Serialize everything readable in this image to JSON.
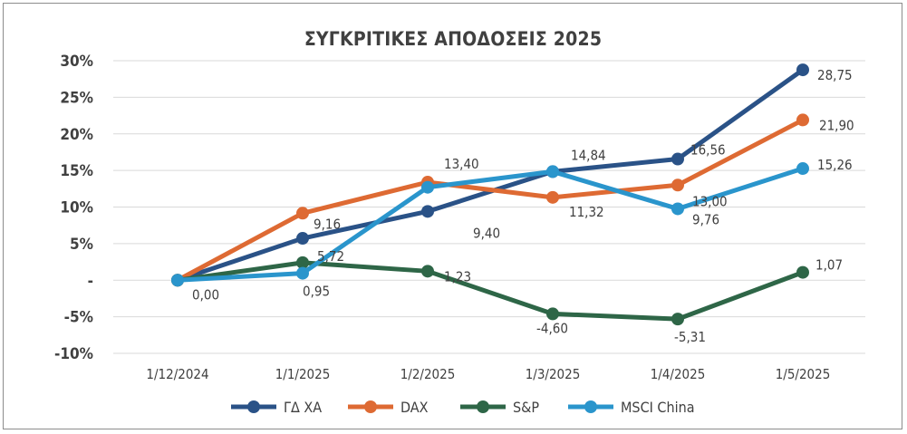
{
  "chart_data": {
    "type": "line",
    "title": "ΣΥΓΚΡΙΤΙΚΕΣ ΑΠΟΔΟΣΕΙΣ 2025",
    "categories": [
      "1/12/2024",
      "1/1/2025",
      "1/2/2025",
      "1/3/2025",
      "1/4/2025",
      "1/5/2025"
    ],
    "ylim": [
      -10,
      30
    ],
    "yticks": [
      {
        "value": 30,
        "label": "30%"
      },
      {
        "value": 25,
        "label": "25%"
      },
      {
        "value": 20,
        "label": "20%"
      },
      {
        "value": 15,
        "label": "15%"
      },
      {
        "value": 10,
        "label": "10%"
      },
      {
        "value": 5,
        "label": "5%"
      },
      {
        "value": 0,
        "label": "-"
      },
      {
        "value": -5,
        "label": "-5%"
      },
      {
        "value": -10,
        "label": "-10%"
      }
    ],
    "grid": true,
    "legend": "bottom",
    "series": [
      {
        "name": "ΓΔ ΧΑ",
        "color": "#2a5287",
        "values": [
          0.0,
          5.72,
          9.4,
          14.84,
          16.56,
          28.75
        ],
        "labels": [
          "0,00",
          "5,72",
          "9,40",
          "14,84",
          "16,56",
          "28,75"
        ]
      },
      {
        "name": "DAX",
        "color": "#de6a33",
        "values": [
          0.0,
          9.16,
          13.4,
          11.32,
          13.0,
          21.9
        ],
        "labels": [
          "",
          "9,16",
          "13,40",
          "11,32",
          "13,00",
          "21,90"
        ]
      },
      {
        "name": "S&P",
        "color": "#2e6647",
        "values": [
          0.0,
          2.4,
          1.23,
          -4.6,
          -5.31,
          1.07
        ],
        "labels": [
          "",
          "",
          "1,23",
          "-4,60",
          "-5,31",
          "1,07"
        ]
      },
      {
        "name": "MSCI China",
        "color": "#2a95cc",
        "values": [
          0.0,
          0.95,
          12.7,
          14.84,
          9.76,
          15.26
        ],
        "labels": [
          "",
          "0,95",
          "",
          "",
          "9,76",
          "15,26"
        ]
      }
    ]
  }
}
